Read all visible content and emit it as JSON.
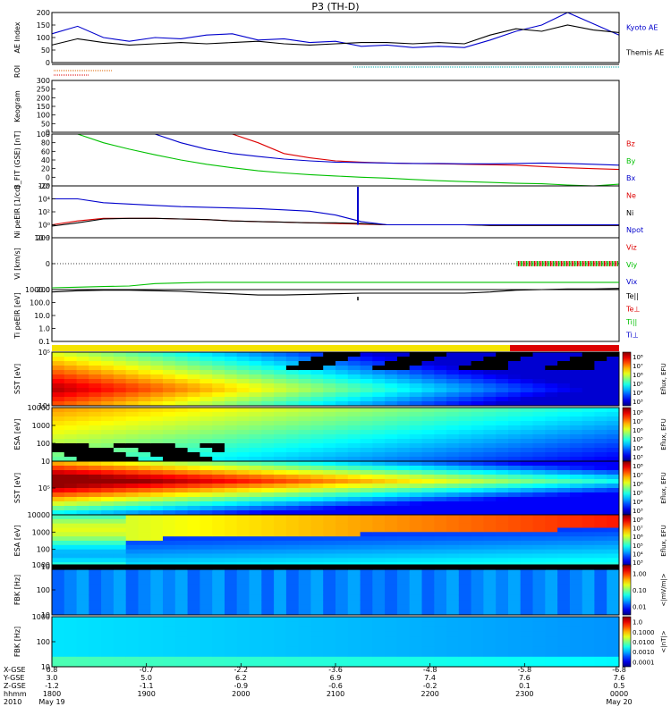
{
  "title": "P3 (TH-D)",
  "colors": {
    "bz": "#dd0000",
    "by": "#00c000",
    "bx": "#0000cc",
    "kyoto": "#0000cc",
    "themis": "#000000",
    "orange": "#dd6600",
    "cyan": "#00aaaa",
    "bar_yellow": "#f4e300",
    "bar_red": "#dd0000"
  },
  "chart_data": [
    {
      "type": "line",
      "id": "ae",
      "ylabel": "AE Index",
      "ylim": [
        0,
        200
      ],
      "ticks": [
        "0",
        "50",
        "100",
        "150",
        "200"
      ],
      "right_labels": [
        {
          "text": "Kyoto AE",
          "color": "#0000cc"
        },
        {
          "text": "Themis AE",
          "color": "#000000"
        }
      ],
      "series": [
        {
          "name": "Kyoto AE",
          "values": [
            115,
            145,
            100,
            85,
            100,
            95,
            110,
            115,
            90,
            95,
            80,
            85,
            65,
            70,
            60,
            65,
            60,
            90,
            125,
            150,
            200,
            155,
            110
          ]
        },
        {
          "name": "Themis AE",
          "values": [
            70,
            95,
            80,
            70,
            75,
            80,
            75,
            80,
            85,
            75,
            70,
            75,
            80,
            80,
            75,
            80,
            75,
            110,
            135,
            125,
            150,
            130,
            120
          ]
        }
      ]
    },
    {
      "type": "markers",
      "id": "roi",
      "ylabel": "ROI"
    },
    {
      "type": "image",
      "id": "keogram",
      "ylabel": "Keogram",
      "ylim": [
        0,
        300
      ],
      "ticks": [
        "0",
        "50",
        "100",
        "150",
        "200",
        "250",
        "300"
      ]
    },
    {
      "type": "line",
      "id": "bfield",
      "ylabel": "B_FIT (GSE) [nT]",
      "ylim": [
        -20,
        100
      ],
      "ticks": [
        "-20",
        "0",
        "20",
        "40",
        "60",
        "80",
        "100"
      ],
      "right_labels": [
        {
          "text": "Bz",
          "color": "#dd0000"
        },
        {
          "text": "By",
          "color": "#00c000"
        },
        {
          "text": "Bx",
          "color": "#0000cc"
        }
      ],
      "series": [
        {
          "name": "Bz",
          "values": [
            null,
            null,
            null,
            null,
            null,
            null,
            null,
            100,
            80,
            55,
            45,
            38,
            35,
            33,
            32,
            31,
            30,
            29,
            28,
            25,
            22,
            20,
            18
          ]
        },
        {
          "name": "By",
          "values": [
            null,
            100,
            80,
            65,
            52,
            40,
            30,
            22,
            15,
            10,
            6,
            3,
            0,
            -2,
            -5,
            -8,
            -10,
            -12,
            -14,
            -15,
            -18,
            -20,
            -16
          ]
        },
        {
          "name": "Bx",
          "values": [
            null,
            null,
            null,
            null,
            100,
            80,
            65,
            55,
            48,
            42,
            38,
            35,
            34,
            33,
            32,
            32,
            31,
            31,
            32,
            33,
            32,
            30,
            28
          ]
        }
      ]
    },
    {
      "type": "line",
      "id": "density",
      "ylabel": "Ni peEIR [1/cc]",
      "log": true,
      "ticks": [
        "10⁻²",
        "10⁰",
        "10²",
        "10⁴",
        "10⁶"
      ],
      "right_labels": [
        {
          "text": "Ne",
          "color": "#dd0000"
        },
        {
          "text": "Ni",
          "color": "#000000"
        },
        {
          "text": "Npot",
          "color": "#0000cc"
        }
      ],
      "series": [
        {
          "name": "Ne",
          "values": [
            0,
            0.6,
            1,
            1,
            1,
            0.9,
            0.8,
            0.6,
            0.5,
            0.4,
            0.3,
            0.2,
            0.1,
            0,
            0,
            0,
            0,
            -0.1,
            -0.1,
            -0.1,
            -0.1,
            -0.1,
            -0.1
          ]
        },
        {
          "name": "Ni",
          "values": [
            -0.2,
            0.3,
            0.9,
            1,
            1,
            0.9,
            0.8,
            0.6,
            0.5,
            0.4,
            0.3,
            0.3,
            0.2,
            0,
            0,
            0,
            0,
            -0.1,
            -0.1,
            -0.1,
            -0.1,
            -0.1,
            -0.1
          ]
        },
        {
          "name": "Npot",
          "values": [
            4,
            4,
            3.4,
            3.2,
            3,
            2.8,
            2.7,
            2.6,
            2.5,
            2.3,
            2.1,
            1.5,
            0.5,
            0,
            0,
            0,
            0,
            0,
            0,
            0,
            0,
            0,
            0
          ]
        }
      ]
    },
    {
      "type": "line",
      "id": "velocity",
      "ylabel": "Vi [km/s]",
      "ylim": [
        -400,
        400
      ],
      "ticks": [
        "-200",
        "0",
        "200"
      ],
      "right_labels": [
        {
          "text": "Viz",
          "color": "#dd0000"
        },
        {
          "text": "Viy",
          "color": "#00c000"
        },
        {
          "text": "Vix",
          "color": "#0000cc"
        }
      ],
      "series": [
        {
          "name": "Viz",
          "values": [
            null,
            null,
            null,
            null,
            null,
            null,
            null,
            null,
            null,
            null,
            null,
            null,
            null,
            null,
            null,
            null,
            null,
            null,
            10,
            10,
            10,
            10,
            10
          ]
        },
        {
          "name": "Viy",
          "values": [
            null,
            null,
            null,
            null,
            null,
            null,
            null,
            null,
            null,
            null,
            null,
            null,
            null,
            null,
            null,
            null,
            null,
            null,
            -5,
            0,
            5,
            0,
            -5
          ]
        },
        {
          "name": "Vix",
          "values": [
            null,
            null,
            null,
            null,
            null,
            null,
            null,
            null,
            null,
            null,
            null,
            null,
            null,
            null,
            null,
            null,
            null,
            null,
            0,
            0,
            0,
            0,
            0
          ]
        }
      ]
    },
    {
      "type": "line",
      "id": "temp",
      "ylabel": "Ti peEIR [eV]",
      "log": true,
      "ticks": [
        "0.1",
        "1.0",
        "10.0",
        "100.0",
        "1000.0"
      ],
      "right_labels": [
        {
          "text": "Te||",
          "color": "#000000"
        },
        {
          "text": "Te⊥",
          "color": "#dd0000"
        },
        {
          "text": "Ti||",
          "color": "#00c000"
        },
        {
          "text": "Ti⊥",
          "color": "#0000cc"
        }
      ],
      "series": [
        {
          "name": "Te||",
          "values": [
            3.1,
            3.2,
            3.25,
            3.25,
            3.2,
            3.15,
            3.05,
            2.95,
            2.85,
            2.85,
            2.9,
            2.95,
            3,
            3,
            3,
            3,
            3,
            3.1,
            3.25,
            3.3,
            3.35,
            3.35,
            3.4
          ]
        },
        {
          "name": "Ti||",
          "values": [
            3.45,
            3.5,
            3.55,
            3.6,
            3.8,
            3.85,
            3.9,
            3.9,
            3.9,
            3.9,
            3.9,
            3.9,
            3.9,
            3.9,
            3.9,
            3.9,
            3.9,
            3.9,
            3.9,
            3.9,
            3.9,
            3.9,
            3.9
          ]
        }
      ]
    },
    {
      "type": "heatmap",
      "id": "sst_i",
      "ylabel": "SST [eV]",
      "ticks": [
        "10⁴",
        "10⁵"
      ],
      "colorbar": {
        "label": "Eflux, EFU",
        "ticks": [
          "10³",
          "10⁴",
          "10⁵",
          "10⁶",
          "10⁷",
          "10⁸"
        ]
      }
    },
    {
      "type": "heatmap",
      "id": "esa_i",
      "ylabel": "ESA [eV]",
      "ticks": [
        "10",
        "100",
        "1000",
        "10000"
      ],
      "colorbar": {
        "label": "Eflux, EFU",
        "ticks": [
          "10³",
          "10⁴",
          "10⁵",
          "10⁶",
          "10⁷",
          "10⁸"
        ]
      }
    },
    {
      "type": "heatmap",
      "id": "sst_e",
      "ylabel": "SST [eV]",
      "ticks": [
        "10⁵"
      ],
      "colorbar": {
        "label": "Eflux, EFU",
        "ticks": [
          "10³",
          "10⁴",
          "10⁵",
          "10⁶",
          "10⁷",
          "10⁸"
        ]
      }
    },
    {
      "type": "heatmap",
      "id": "esa_e",
      "ylabel": "ESA [eV]",
      "ticks": [
        "10",
        "100",
        "1000",
        "10000"
      ],
      "colorbar": {
        "label": "Eflux, EFU",
        "ticks": [
          "10³",
          "10⁴",
          "10⁵",
          "10⁶",
          "10⁷",
          "10⁸"
        ]
      }
    },
    {
      "type": "heatmap",
      "id": "fbk_e",
      "ylabel": "FBK [Hz]",
      "ticks": [
        "10",
        "100",
        "1000"
      ],
      "colorbar": {
        "label": "<|mV/m|>",
        "ticks": [
          "0.01",
          "0.10",
          "1.00"
        ]
      }
    },
    {
      "type": "heatmap",
      "id": "fbk_b",
      "ylabel": "FBK [Hz]",
      "ticks": [
        "10",
        "100",
        "1000"
      ],
      "colorbar": {
        "label": "<|nT|>",
        "ticks": [
          "0.0001",
          "0.0010",
          "0.0100",
          "0.1000",
          "1.0"
        ]
      }
    }
  ],
  "xaxis": {
    "row_labels": [
      "X-GSE",
      "Y-GSE",
      "Z-GSE",
      "hhmm",
      "2010"
    ],
    "ticks": [
      {
        "x": "0.8",
        "y": "3.0",
        "z": "-1.2",
        "time": "1800",
        "date": "May 19"
      },
      {
        "x": "-0.7",
        "y": "5.0",
        "z": "-1.1",
        "time": "1900",
        "date": ""
      },
      {
        "x": "-2.2",
        "y": "6.2",
        "z": "-0.9",
        "time": "2000",
        "date": ""
      },
      {
        "x": "-3.6",
        "y": "6.9",
        "z": "-0.6",
        "time": "2100",
        "date": ""
      },
      {
        "x": "-4.8",
        "y": "7.4",
        "z": "-0.2",
        "time": "2200",
        "date": ""
      },
      {
        "x": "-5.8",
        "y": "7.6",
        "z": "0.1",
        "time": "2300",
        "date": ""
      },
      {
        "x": "-6.8",
        "y": "7.6",
        "z": "0.5",
        "time": "0000",
        "date": "May 20"
      }
    ]
  }
}
